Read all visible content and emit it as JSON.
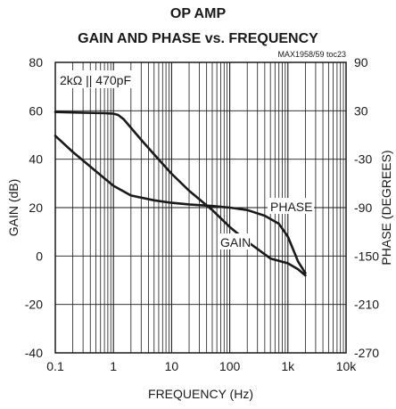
{
  "chart_data": {
    "type": "line",
    "title": "OP AMP",
    "subtitle": "GAIN AND PHASE vs. FREQUENCY",
    "figure_id": "MAX1958/59 toc23",
    "condition_label": "2kΩ || 470pF",
    "xlabel": "FREQUENCY (Hz)",
    "ylabel_left": "GAIN (dB)",
    "ylabel_right": "PHASE (DEGREES)",
    "x_scale": "log",
    "xlim": [
      0.1,
      10000
    ],
    "ylim_left": [
      -40,
      80
    ],
    "ylim_right": [
      -270,
      90
    ],
    "grid": true,
    "x_ticks": [
      {
        "value": 0.1,
        "label": "0.1"
      },
      {
        "value": 1,
        "label": "1"
      },
      {
        "value": 10,
        "label": "10"
      },
      {
        "value": 100,
        "label": "100"
      },
      {
        "value": 1000,
        "label": "1k"
      },
      {
        "value": 10000,
        "label": "10k"
      }
    ],
    "y_ticks_left": [
      "80",
      "60",
      "40",
      "20",
      "0",
      "-20",
      "-40"
    ],
    "y_ticks_right": [
      "90",
      "30",
      "-30",
      "-90",
      "-150",
      "-210",
      "-270"
    ],
    "series": [
      {
        "name": "GAIN",
        "axis": "left",
        "x": [
          0.1,
          0.3,
          0.7,
          1.0,
          1.2,
          1.5,
          2,
          3,
          5,
          10,
          20,
          50,
          100,
          200,
          500,
          1000,
          1500,
          2000
        ],
        "y": [
          59.5,
          59.2,
          59.0,
          58.8,
          58.3,
          56.5,
          53,
          48,
          42,
          34,
          27,
          19,
          12,
          6,
          -1,
          -3,
          -5.5,
          -8
        ]
      },
      {
        "name": "PHASE",
        "axis": "right",
        "x": [
          0.1,
          0.2,
          0.5,
          1.0,
          2,
          5,
          10,
          20,
          50,
          100,
          200,
          400,
          700,
          1000,
          1500,
          2000
        ],
        "y": [
          -1,
          -21,
          -45,
          -63,
          -75,
          -81,
          -84,
          -86,
          -88,
          -90,
          -93,
          -100,
          -110,
          -126,
          -157,
          -171
        ]
      }
    ],
    "annotations": [
      "PHASE",
      "GAIN"
    ]
  }
}
